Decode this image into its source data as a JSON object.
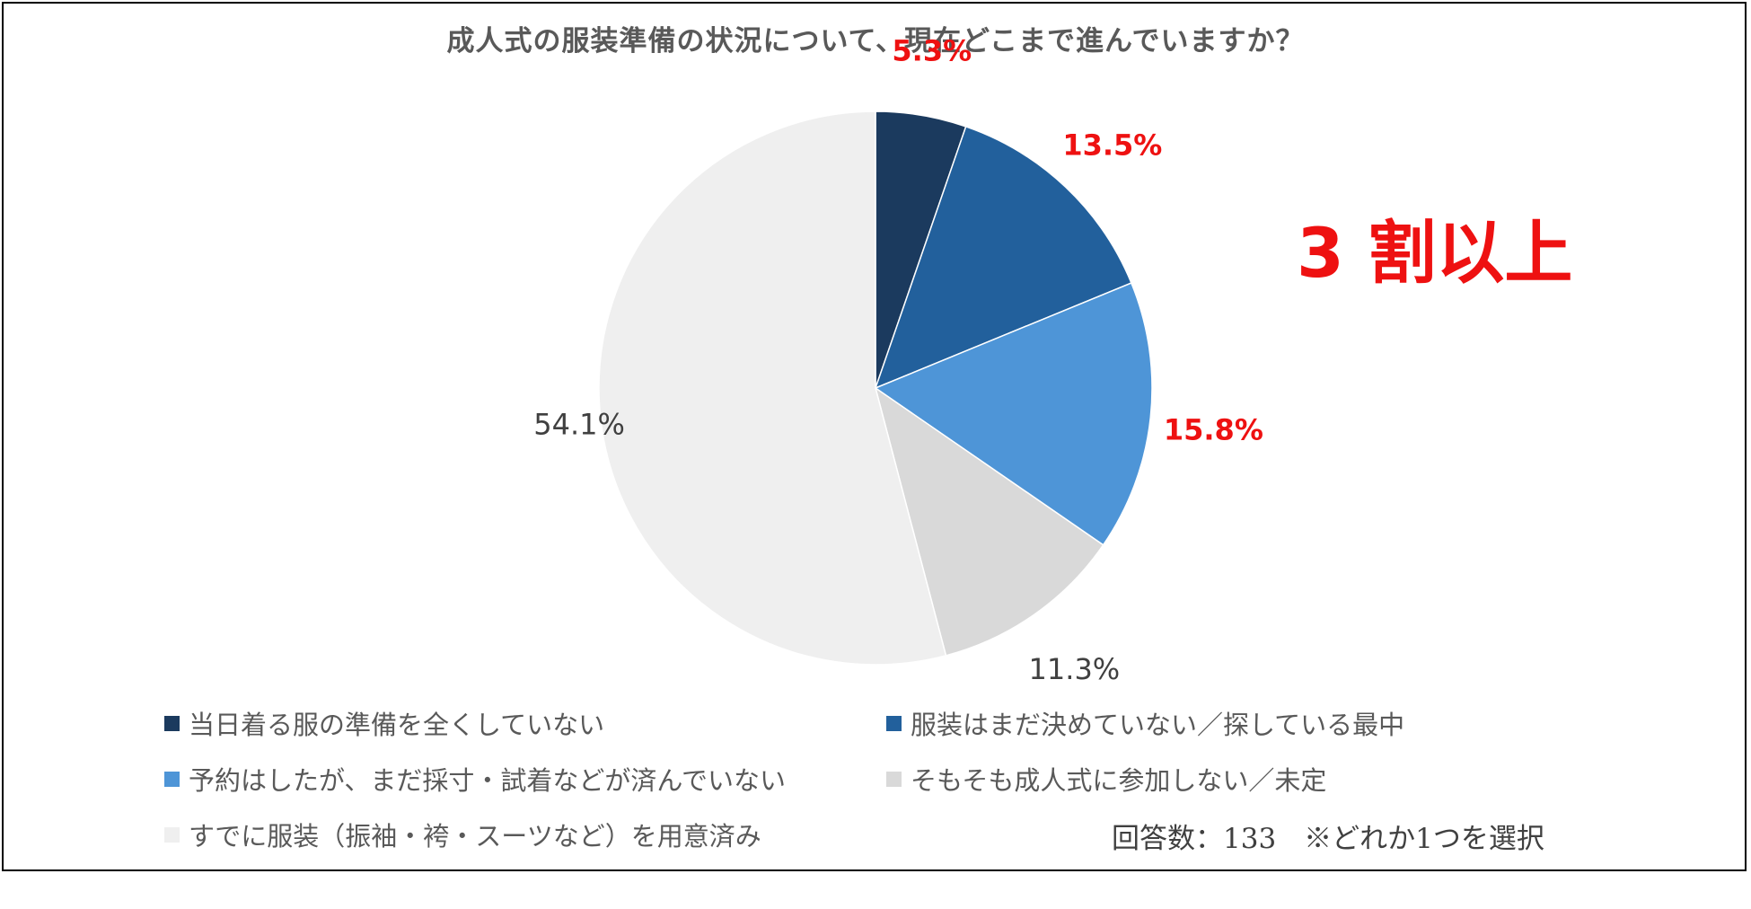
{
  "chart_data": {
    "type": "pie",
    "title": "成人式の服装準備の状況について、現在どこまで進んでいますか？",
    "categories": [
      "当日着る服の準備を全くしていない",
      "服装はまだ決めていない／探している最中",
      "予約はしたが、まだ採寸・試着などが済んでいない",
      "そもそも成人式に参加しない／未定",
      "すでに服装（振袖・袴・スーツなど）を用意済み"
    ],
    "values": [
      5.3,
      13.5,
      15.8,
      11.3,
      54.1
    ],
    "value_labels": [
      "5.3%",
      "13.5%",
      "15.8%",
      "11.3%",
      "54.1%"
    ],
    "colors": [
      "#1b3a5e",
      "#22609c",
      "#4e95d7",
      "#d9d9d9",
      "#efefef"
    ],
    "highlight_color": "#ee1111",
    "highlighted_slices": [
      0,
      1,
      2
    ],
    "start_angle": "12 o'clock",
    "direction": "clockwise",
    "legend_position": "bottom",
    "callout": "3 割以上",
    "note": "回答数：133　※どれか1つを選択"
  }
}
